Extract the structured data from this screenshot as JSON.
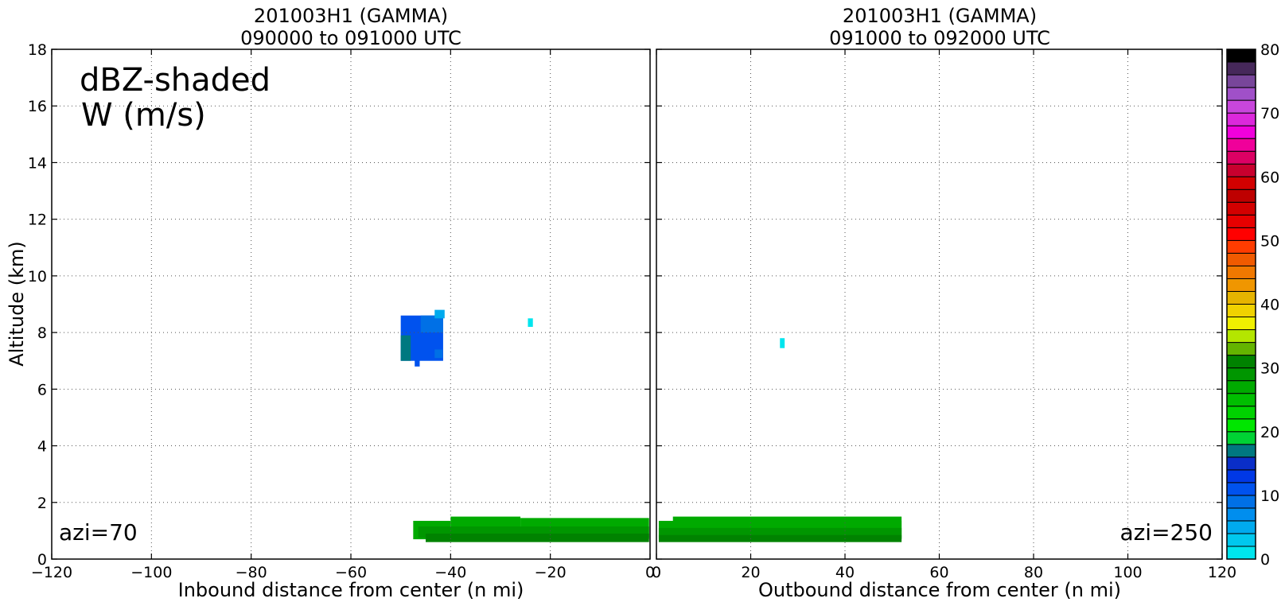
{
  "chart_data": [
    {
      "type": "heatmap",
      "title_line1": "201003H1 (GAMMA)",
      "title_line2": "090000 to 091000 UTC",
      "xlabel": "Inbound distance from center (n mi)",
      "ylabel": "Altitude (km)",
      "xlim": [
        -120,
        0
      ],
      "ylim": [
        0,
        18
      ],
      "xticks": [
        -120,
        -100,
        -80,
        -60,
        -40,
        -20,
        0
      ],
      "xtick_labels": [
        "−120",
        "−100",
        "−80",
        "−60",
        "−40",
        "−20",
        "0"
      ],
      "yticks": [
        0,
        2,
        4,
        6,
        8,
        10,
        12,
        14,
        16,
        18
      ],
      "grid": true,
      "annotation_main_1": "dBZ-shaded",
      "annotation_main_2": "W (m/s)",
      "annotation_azimuth": "azi=70",
      "cells": [
        {
          "x0": -47.5,
          "x1": -40,
          "y0": 0.7,
          "y1": 1.35,
          "dbz": 26
        },
        {
          "x0": -40,
          "x1": -26,
          "y0": 0.7,
          "y1": 1.5,
          "dbz": 26
        },
        {
          "x0": -26,
          "x1": -0.2,
          "y0": 0.7,
          "y1": 1.45,
          "dbz": 26
        },
        {
          "x0": -46.5,
          "x1": -0.2,
          "y0": 0.75,
          "y1": 1.15,
          "dbz": 28
        },
        {
          "x0": -45,
          "x1": -0.2,
          "y0": 0.6,
          "y1": 0.9,
          "dbz": 31
        },
        {
          "x0": -50,
          "x1": -41.5,
          "y0": 7.0,
          "y1": 8.6,
          "dbz": 11
        },
        {
          "x0": -46,
          "x1": -41.5,
          "y0": 8.0,
          "y1": 8.6,
          "dbz": 9
        },
        {
          "x0": -50,
          "x1": -48,
          "y0": 7.0,
          "y1": 7.9,
          "dbz": 17
        },
        {
          "x0": -43.2,
          "x1": -41.2,
          "y0": 8.5,
          "y1": 8.8,
          "dbz": 5
        },
        {
          "x0": -43.2,
          "x1": -41.6,
          "y0": 7.1,
          "y1": 7.4,
          "dbz": 8
        },
        {
          "x0": -47.2,
          "x1": -46.2,
          "y0": 6.8,
          "y1": 7.05,
          "dbz": 10
        },
        {
          "x0": -24.5,
          "x1": -23.5,
          "y0": 8.2,
          "y1": 8.5,
          "dbz": 1
        }
      ]
    },
    {
      "type": "heatmap",
      "title_line1": "201003H1 (GAMMA)",
      "title_line2": "091000 to 092000 UTC",
      "xlabel": "Outbound distance from center (n mi)",
      "xlim": [
        0,
        120
      ],
      "ylim": [
        0,
        18
      ],
      "xticks": [
        0,
        20,
        40,
        60,
        80,
        100,
        120
      ],
      "xtick_labels": [
        "0",
        "20",
        "40",
        "60",
        "80",
        "100",
        "120"
      ],
      "yticks": [
        0,
        2,
        4,
        6,
        8,
        10,
        12,
        14,
        16,
        18
      ],
      "grid": true,
      "annotation_azimuth": "azi=250",
      "cells": [
        {
          "x0": 0.5,
          "x1": 52,
          "y0": 0.7,
          "y1": 1.35,
          "dbz": 26
        },
        {
          "x0": 3.5,
          "x1": 52,
          "y0": 0.7,
          "y1": 1.5,
          "dbz": 26
        },
        {
          "x0": 0.5,
          "x1": 52,
          "y0": 0.75,
          "y1": 1.1,
          "dbz": 28
        },
        {
          "x0": 0.5,
          "x1": 52,
          "y0": 0.6,
          "y1": 0.85,
          "dbz": 31
        },
        {
          "x0": 26.2,
          "x1": 27.2,
          "y0": 7.45,
          "y1": 7.8,
          "dbz": 1
        }
      ]
    }
  ],
  "colorbar": {
    "min": 0,
    "max": 80,
    "step": 2,
    "tick_values": [
      0,
      10,
      20,
      30,
      40,
      50,
      60,
      70,
      80
    ],
    "tick_labels": [
      "0",
      "10",
      "20",
      "30",
      "40",
      "50",
      "60",
      "70",
      "80"
    ],
    "colors": [
      "#00e5ee",
      "#00c8ee",
      "#00aaee",
      "#008eee",
      "#0070e6",
      "#0052ee",
      "#0038e6",
      "#0a2ec8",
      "#007880",
      "#00d234",
      "#00e600",
      "#00d200",
      "#00be00",
      "#00aa00",
      "#009600",
      "#008200",
      "#64b400",
      "#b4e600",
      "#f0f000",
      "#f0d200",
      "#e6b400",
      "#f09600",
      "#f07800",
      "#f05a00",
      "#ff3c00",
      "#ff0000",
      "#e60000",
      "#d20000",
      "#be0000",
      "#d20000",
      "#c8002e",
      "#dc0064",
      "#f0009a",
      "#f000dc",
      "#dc28dc",
      "#c846dc",
      "#a050c8",
      "#78469a",
      "#46285a",
      "#000000"
    ]
  }
}
